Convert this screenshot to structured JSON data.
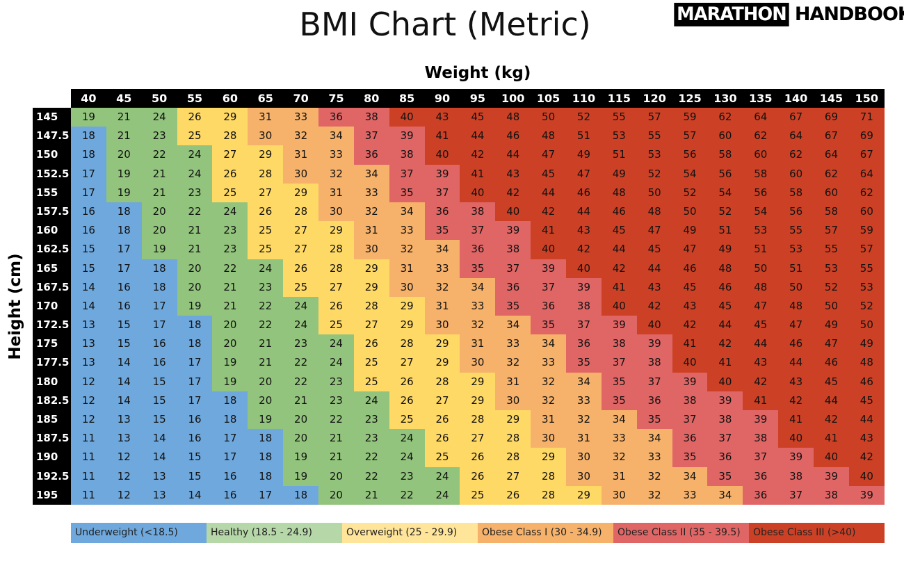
{
  "header": {
    "title": "BMI Chart (Metric)",
    "logo_text": "MARATHON HANDBOOK",
    "logo_part1": "MARATHON",
    "logo_part2": "HANDBOOK"
  },
  "chart_data": {
    "type": "heatmap",
    "title": "BMI Chart (Metric)",
    "xlabel": "Weight (kg)",
    "ylabel": "Height (cm)",
    "x": [
      "40",
      "45",
      "50",
      "55",
      "60",
      "65",
      "70",
      "75",
      "80",
      "85",
      "90",
      "95",
      "100",
      "105",
      "110",
      "115",
      "120",
      "125",
      "130",
      "135",
      "140",
      "145",
      "150"
    ],
    "y": [
      "145",
      "147.5",
      "150",
      "152.5",
      "155",
      "157.5",
      "160",
      "162.5",
      "165",
      "167.5",
      "170",
      "172.5",
      "175",
      "177.5",
      "180",
      "182.5",
      "185",
      "187.5",
      "190",
      "192.5",
      "195"
    ],
    "values": [
      [
        19,
        21,
        24,
        26,
        29,
        31,
        33,
        36,
        38,
        40,
        43,
        45,
        48,
        50,
        52,
        55,
        57,
        59,
        62,
        64,
        67,
        69,
        71
      ],
      [
        18,
        21,
        23,
        25,
        28,
        30,
        32,
        34,
        37,
        39,
        41,
        44,
        46,
        48,
        51,
        53,
        55,
        57,
        60,
        62,
        64,
        67,
        69
      ],
      [
        18,
        20,
        22,
        24,
        27,
        29,
        31,
        33,
        36,
        38,
        40,
        42,
        44,
        47,
        49,
        51,
        53,
        56,
        58,
        60,
        62,
        64,
        67
      ],
      [
        17,
        19,
        21,
        24,
        26,
        28,
        30,
        32,
        34,
        37,
        39,
        41,
        43,
        45,
        47,
        49,
        52,
        54,
        56,
        58,
        60,
        62,
        64
      ],
      [
        17,
        19,
        21,
        23,
        25,
        27,
        29,
        31,
        33,
        35,
        37,
        40,
        42,
        44,
        46,
        48,
        50,
        52,
        54,
        56,
        58,
        60,
        62
      ],
      [
        16,
        18,
        20,
        22,
        24,
        26,
        28,
        30,
        32,
        34,
        36,
        38,
        40,
        42,
        44,
        46,
        48,
        50,
        52,
        54,
        56,
        58,
        60
      ],
      [
        16,
        18,
        20,
        21,
        23,
        25,
        27,
        29,
        31,
        33,
        35,
        37,
        39,
        41,
        43,
        45,
        47,
        49,
        51,
        53,
        55,
        57,
        59
      ],
      [
        15,
        17,
        19,
        21,
        23,
        25,
        27,
        28,
        30,
        32,
        34,
        36,
        38,
        40,
        42,
        44,
        45,
        47,
        49,
        51,
        53,
        55,
        57
      ],
      [
        15,
        17,
        18,
        20,
        22,
        24,
        26,
        28,
        29,
        31,
        33,
        35,
        37,
        39,
        40,
        42,
        44,
        46,
        48,
        50,
        51,
        53,
        55
      ],
      [
        14,
        16,
        18,
        20,
        21,
        23,
        25,
        27,
        29,
        30,
        32,
        34,
        36,
        37,
        39,
        41,
        43,
        45,
        46,
        48,
        50,
        52,
        53
      ],
      [
        14,
        16,
        17,
        19,
        21,
        22,
        24,
        26,
        28,
        29,
        31,
        33,
        35,
        36,
        38,
        40,
        42,
        43,
        45,
        47,
        48,
        50,
        52
      ],
      [
        13,
        15,
        17,
        18,
        20,
        22,
        24,
        25,
        27,
        29,
        30,
        32,
        34,
        35,
        37,
        39,
        40,
        42,
        44,
        45,
        47,
        49,
        50
      ],
      [
        13,
        15,
        16,
        18,
        20,
        21,
        23,
        24,
        26,
        28,
        29,
        31,
        33,
        34,
        36,
        38,
        39,
        41,
        42,
        44,
        46,
        47,
        49
      ],
      [
        13,
        14,
        16,
        17,
        19,
        21,
        22,
        24,
        25,
        27,
        29,
        30,
        32,
        33,
        35,
        37,
        38,
        40,
        41,
        43,
        44,
        46,
        48
      ],
      [
        12,
        14,
        15,
        17,
        19,
        20,
        22,
        23,
        25,
        26,
        28,
        29,
        31,
        32,
        34,
        35,
        37,
        39,
        40,
        42,
        43,
        45,
        46
      ],
      [
        12,
        14,
        15,
        17,
        18,
        20,
        21,
        23,
        24,
        26,
        27,
        29,
        30,
        32,
        33,
        35,
        36,
        38,
        39,
        41,
        42,
        44,
        45
      ],
      [
        12,
        13,
        15,
        16,
        18,
        19,
        20,
        22,
        23,
        25,
        26,
        28,
        29,
        31,
        32,
        34,
        35,
        37,
        38,
        39,
        41,
        42,
        44
      ],
      [
        11,
        13,
        14,
        16,
        17,
        18,
        20,
        21,
        23,
        24,
        26,
        27,
        28,
        30,
        31,
        33,
        34,
        36,
        37,
        38,
        40,
        41,
        43
      ],
      [
        11,
        12,
        14,
        15,
        17,
        18,
        19,
        21,
        22,
        24,
        25,
        26,
        28,
        29,
        30,
        32,
        33,
        35,
        36,
        37,
        39,
        40,
        42
      ],
      [
        11,
        12,
        13,
        15,
        16,
        18,
        19,
        20,
        22,
        23,
        24,
        26,
        27,
        28,
        30,
        31,
        32,
        34,
        35,
        36,
        38,
        39,
        40
      ],
      [
        11,
        12,
        13,
        14,
        16,
        17,
        18,
        20,
        21,
        22,
        24,
        25,
        26,
        28,
        29,
        30,
        32,
        33,
        34,
        36,
        37,
        38,
        39
      ]
    ],
    "legend_position": "bottom",
    "categories": [
      {
        "label": "Underweight (<18.5)",
        "max": 18,
        "color": "#6fa8dc",
        "legend_color": "#6fa8dc"
      },
      {
        "label": "Healthy (18.5 - 24.9)",
        "max": 24,
        "color": "#93c47d",
        "legend_color": "#b6d7a8"
      },
      {
        "label": "Overweight (25 - 29.9)",
        "max": 29,
        "color": "#ffd966",
        "legend_color": "#ffe599"
      },
      {
        "label": "Obese Class I (30 - 34.9)",
        "max": 34,
        "color": "#f6b26b",
        "legend_color": "#f6b26b"
      },
      {
        "label": "Obese Class II (35 - 39.5)",
        "max": 39,
        "color": "#e06666",
        "legend_color": "#e06666"
      },
      {
        "label": "Obese Class III (>40)",
        "max": 999,
        "color": "#cc4125",
        "legend_color": "#cc4125"
      }
    ]
  }
}
